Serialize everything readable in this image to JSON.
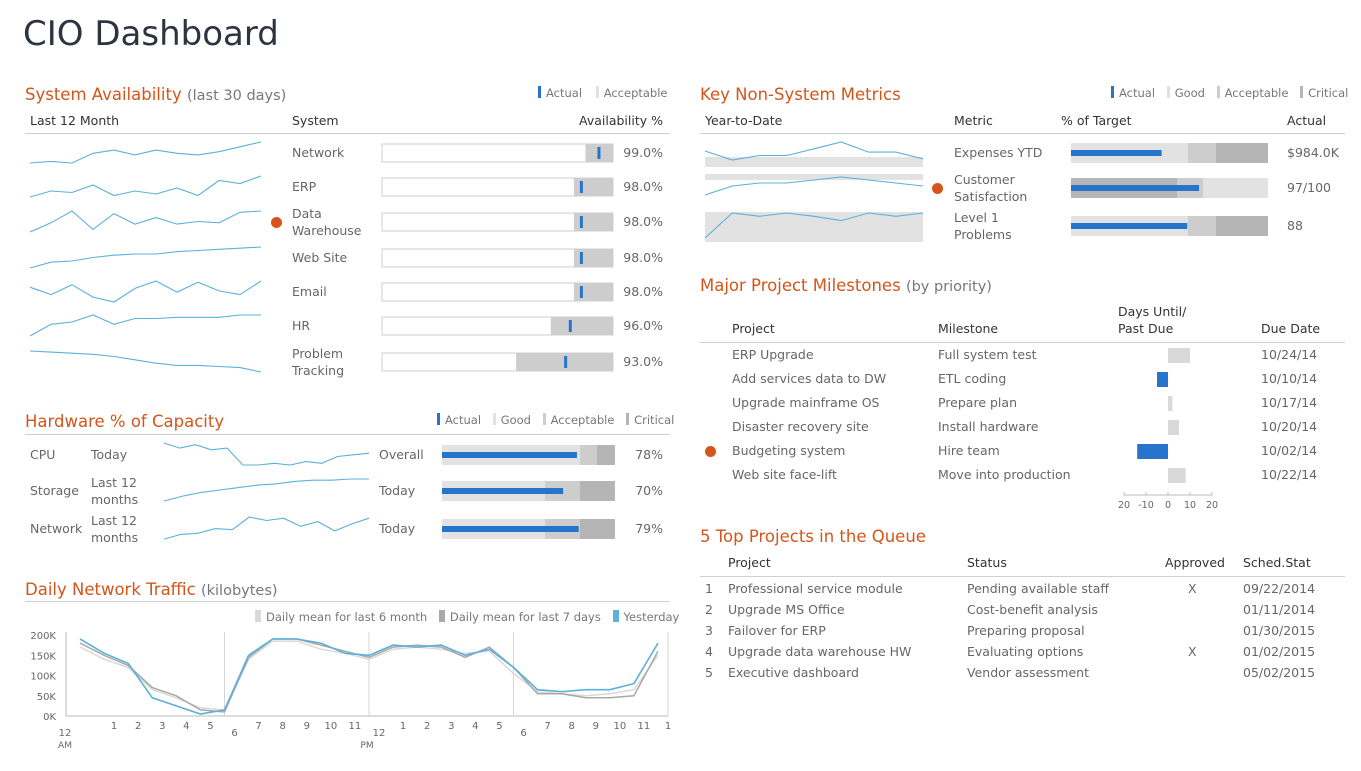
{
  "title": "CIO Dashboard",
  "colors": {
    "accent": "#d4551a",
    "actual": "#2774cc",
    "spark": "#5bb0dc",
    "light": "#e2e2e2",
    "mid": "#cdcdcd",
    "dark": "#b5b5b5"
  },
  "availability": {
    "title": "System Availability",
    "subtitle": "(last 30 days)",
    "legend": [
      "Actual",
      "Acceptable"
    ],
    "headers": {
      "trend": "Last 12 Month",
      "system": "System",
      "value": "Availability %"
    },
    "rows": [
      {
        "system": "Network",
        "value": "99.0%",
        "actual": 99.0,
        "acceptable": 99.0,
        "flag": false,
        "spark": [
          18,
          17,
          18,
          12,
          10,
          13,
          10,
          12,
          13,
          11,
          8,
          5
        ]
      },
      {
        "system": "ERP",
        "value": "98.0%",
        "actual": 98.0,
        "acceptable": 98.0,
        "flag": false,
        "spark": [
          16,
          12,
          13,
          8,
          15,
          12,
          14,
          10,
          15,
          5,
          7,
          2
        ]
      },
      {
        "system": "Data Warehouse",
        "value": "98.0%",
        "actual": 98.0,
        "acceptable": 98.0,
        "flag": true,
        "spark": [
          20,
          13,
          4,
          18,
          6,
          14,
          9,
          14,
          12,
          13,
          5,
          4
        ]
      },
      {
        "system": "Web Site",
        "value": "98.0%",
        "actual": 98.0,
        "acceptable": 98.0,
        "flag": false,
        "spark": [
          20,
          15,
          14,
          11,
          9,
          8,
          8,
          6,
          5,
          4,
          3,
          2
        ]
      },
      {
        "system": "Email",
        "value": "98.0%",
        "actual": 98.0,
        "acceptable": 98.0,
        "flag": false,
        "spark": [
          8,
          14,
          6,
          16,
          20,
          9,
          3,
          12,
          4,
          11,
          14,
          3
        ]
      },
      {
        "system": "HR",
        "value": "96.0%",
        "actual": 96.0,
        "acceptable": 96.0,
        "flag": false,
        "spark": [
          20,
          10,
          8,
          2,
          10,
          5,
          5,
          4,
          4,
          4,
          2,
          2
        ]
      },
      {
        "system": "Problem Tracking",
        "value": "93.0%",
        "actual": 93.0,
        "acceptable": 93.0,
        "flag": false,
        "spark": [
          2,
          3,
          4,
          5,
          7,
          10,
          13,
          15,
          15,
          16,
          17,
          21
        ]
      }
    ]
  },
  "hardware": {
    "title": "Hardware % of Capacity",
    "legend": [
      "Actual",
      "Good",
      "Acceptable",
      "Critical"
    ],
    "rows": [
      {
        "name": "CPU",
        "period": "Today",
        "scope": "Overall",
        "value": "78%",
        "actual": 78,
        "spark": [
          1,
          4,
          2,
          5,
          4,
          14,
          14,
          13,
          14,
          12,
          13,
          9,
          8,
          7
        ]
      },
      {
        "name": "Storage",
        "period": "Last 12 months",
        "scope": "Today",
        "value": "70%",
        "actual": 70,
        "spark": [
          19,
          15,
          12,
          10,
          8,
          6,
          5,
          3,
          2,
          2,
          1,
          1
        ]
      },
      {
        "name": "Network",
        "period": "Last 12 months",
        "scope": "Today",
        "value": "79%",
        "actual": 79,
        "spark": [
          21,
          17,
          16,
          12,
          13,
          2,
          5,
          3,
          10,
          6,
          14,
          8,
          3
        ]
      }
    ]
  },
  "traffic": {
    "title": "Daily Network Traffic",
    "subtitle": "(kilobytes)",
    "legend": [
      "Daily mean for last 6 month",
      "Daily mean for last 7 days",
      "Yesterday"
    ],
    "y_ticks": [
      "200K",
      "150K",
      "100K",
      "50K",
      "0K"
    ],
    "x_ticks": [
      "12",
      "1",
      "2",
      "3",
      "4",
      "5",
      "6",
      "7",
      "8",
      "9",
      "10",
      "11",
      "12",
      "1",
      "2",
      "3",
      "4",
      "5",
      "6",
      "7",
      "8",
      "9",
      "10",
      "11",
      "1"
    ],
    "x_sub": {
      "am": "AM",
      "pm": "PM"
    }
  },
  "chart_data": {
    "type": "line",
    "title": "Daily Network Traffic",
    "ylabel": "kilobytes",
    "ylim": [
      0,
      200000
    ],
    "x": [
      "12 AM",
      "1",
      "2",
      "3",
      "4",
      "5",
      "6",
      "7",
      "8",
      "9",
      "10",
      "11",
      "12 PM",
      "1",
      "2",
      "3",
      "4",
      "5",
      "6",
      "7",
      "8",
      "9",
      "10",
      "11",
      "12"
    ],
    "series": [
      {
        "name": "Daily mean for last 6 month",
        "values": [
          170000,
          140000,
          120000,
          65000,
          45000,
          20000,
          15000,
          140000,
          185000,
          185000,
          165000,
          155000,
          140000,
          165000,
          170000,
          165000,
          155000,
          160000,
          105000,
          60000,
          55000,
          50000,
          55000,
          65000,
          150000
        ]
      },
      {
        "name": "Daily mean for last 7 days",
        "values": [
          180000,
          150000,
          125000,
          70000,
          50000,
          15000,
          10000,
          145000,
          190000,
          190000,
          175000,
          160000,
          145000,
          170000,
          175000,
          170000,
          145000,
          170000,
          120000,
          55000,
          55000,
          45000,
          45000,
          50000,
          160000
        ]
      },
      {
        "name": "Yesterday",
        "values": [
          190000,
          155000,
          130000,
          45000,
          25000,
          5000,
          15000,
          150000,
          190000,
          190000,
          180000,
          155000,
          150000,
          175000,
          170000,
          175000,
          150000,
          165000,
          120000,
          65000,
          60000,
          65000,
          65000,
          80000,
          180000
        ]
      }
    ]
  },
  "nonsystem": {
    "title": "Key Non-System Metrics",
    "legend": [
      "Actual",
      "Good",
      "Acceptable",
      "Critical"
    ],
    "headers": {
      "trend": "Year-to-Date",
      "metric": "Metric",
      "target": "% of Target",
      "actual": "Actual"
    },
    "rows": [
      {
        "metric": "Expenses YTD",
        "actual": "$984.0K",
        "pct": 46,
        "flag": false,
        "spark": [
          10,
          18,
          14,
          14,
          8,
          2,
          11,
          11,
          17
        ]
      },
      {
        "metric": "Customer Satisfaction",
        "actual": "97/100",
        "pct": 65,
        "flag": true,
        "spark": [
          9,
          6,
          5,
          5,
          4,
          3,
          4,
          5,
          6
        ]
      },
      {
        "metric": "Level 1 Problems",
        "actual": "88",
        "pct": 59,
        "flag": false,
        "spark": [
          25,
          2,
          5,
          2,
          5,
          9,
          2,
          5,
          2
        ]
      }
    ]
  },
  "milestones": {
    "title": "Major Project Milestones",
    "subtitle": "(by priority)",
    "headers": {
      "project": "Project",
      "milestone": "Milestone",
      "days": "Days Until/",
      "days2": "Past Due",
      "due": "Due Date"
    },
    "axis": [
      "20",
      "-10",
      "0",
      "10",
      "20"
    ],
    "rows": [
      {
        "project": "ERP Upgrade",
        "milestone": "Full system test",
        "days": 10,
        "due": "10/24/14",
        "flag": false
      },
      {
        "project": "Add services data to DW",
        "milestone": "ETL coding",
        "days": -5,
        "due": "10/10/14",
        "flag": false
      },
      {
        "project": "Upgrade mainframe OS",
        "milestone": "Prepare plan",
        "days": 2,
        "due": "10/17/14",
        "flag": false
      },
      {
        "project": "Disaster recovery site",
        "milestone": "Install hardware",
        "days": 5,
        "due": "10/20/14",
        "flag": false
      },
      {
        "project": "Budgeting system",
        "milestone": "Hire team",
        "days": -14,
        "due": "10/02/14",
        "flag": true
      },
      {
        "project": "Web site face-lift",
        "milestone": "Move into production",
        "days": 8,
        "due": "10/22/14",
        "flag": false
      }
    ]
  },
  "queue": {
    "title": "5 Top Projects in the Queue",
    "headers": {
      "project": "Project",
      "status": "Status",
      "approved": "Approved",
      "sched": "Sched.Stat"
    },
    "rows": [
      {
        "n": "1",
        "project": "Professional service module",
        "status": "Pending available staff",
        "approved": "X",
        "sched": "09/22/2014"
      },
      {
        "n": "2",
        "project": "Upgrade MS Office",
        "status": "Cost-benefit analysis",
        "approved": "",
        "sched": "01/11/2014"
      },
      {
        "n": "3",
        "project": "Failover for ERP",
        "status": "Preparing proposal",
        "approved": "",
        "sched": "01/30/2015"
      },
      {
        "n": "4",
        "project": "Upgrade data warehouse HW",
        "status": "Evaluating options",
        "approved": "X",
        "sched": "01/02/2015"
      },
      {
        "n": "5",
        "project": "Executive dashboard",
        "status": "Vendor assessment",
        "approved": "",
        "sched": "05/02/2015"
      }
    ]
  }
}
